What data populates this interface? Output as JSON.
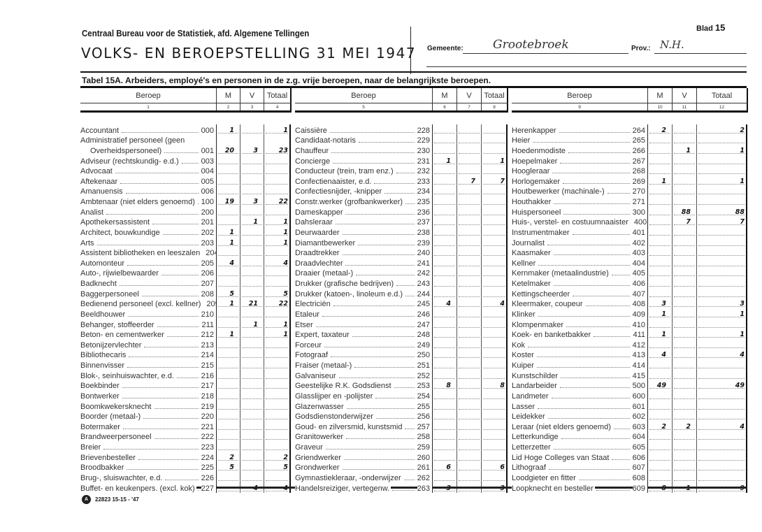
{
  "header": {
    "organization": "Centraal Bureau voor de Statistiek, afd. Algemene Tellingen",
    "title": "VOLKS- EN BEROEPSTELLING 31 MEI 1947",
    "gemeente_label": "Gemeente:",
    "gemeente_value": "Grootebroek",
    "prov_label": "Prov.:",
    "prov_value": "N.H.",
    "blad_label": "Blad",
    "blad_number": "15"
  },
  "table_title": "Tabel 15A.  Arbeiders, employé's en personen in de z.g. vrije beroepen, naar de belangrijkste beroepen.",
  "column_headers": {
    "beroep": "Beroep",
    "m": "M",
    "v": "V",
    "totaal": "Totaal"
  },
  "blocks": [
    {
      "col_numbers": [
        "1",
        "2",
        "3",
        "4"
      ],
      "rows": [
        {
          "label": "Accountant",
          "code": "000",
          "m": "1",
          "v": "",
          "t": "1"
        },
        {
          "label": "Administratief  personeel  (geen",
          "code": "",
          "m": "",
          "v": "",
          "t": "",
          "cont": true
        },
        {
          "label": "Overheidspersoneel)",
          "code": "001",
          "m": "20",
          "v": "3",
          "t": "23",
          "indent": true
        },
        {
          "label": "Adviseur (rechtskundig- e.d.)",
          "code": "003",
          "m": "",
          "v": "",
          "t": ""
        },
        {
          "label": "Advocaat",
          "code": "004",
          "m": "",
          "v": "",
          "t": ""
        },
        {
          "label": "Aftekenaar",
          "code": "005",
          "m": "",
          "v": "",
          "t": ""
        },
        {
          "label": "Amanuensis",
          "code": "006",
          "m": "",
          "v": "",
          "t": ""
        },
        {
          "label": "Ambtenaar (niet elders genoemd)",
          "code": "100",
          "m": "19",
          "v": "3",
          "t": "22"
        },
        {
          "label": "Analist",
          "code": "200",
          "m": "",
          "v": "",
          "t": ""
        },
        {
          "label": "Apothekersassistent",
          "code": "201",
          "m": "",
          "v": "1",
          "t": "1"
        },
        {
          "label": "Architect, bouwkundige",
          "code": "202",
          "m": "1",
          "v": "",
          "t": "1"
        },
        {
          "label": "Arts",
          "code": "203",
          "m": "1",
          "v": "",
          "t": "1"
        },
        {
          "label": "Assistent bibliotheken en leeszalen",
          "code": "204",
          "m": "",
          "v": "",
          "t": ""
        },
        {
          "label": "Automonteur",
          "code": "205",
          "m": "4",
          "v": "",
          "t": "4"
        },
        {
          "label": "Auto-, rijwielbewaarder",
          "code": "206",
          "m": "",
          "v": "",
          "t": ""
        },
        {
          "label": "Badknecht",
          "code": "207",
          "m": "",
          "v": "",
          "t": ""
        },
        {
          "label": "Baggerpersoneel",
          "code": "208",
          "m": "5",
          "v": "",
          "t": "5"
        },
        {
          "label": "Bedienend personeel (excl. kellner)",
          "code": "209",
          "m": "1",
          "v": "21",
          "t": "22"
        },
        {
          "label": "Beeldhouwer",
          "code": "210",
          "m": "",
          "v": "",
          "t": ""
        },
        {
          "label": "Behanger, stoffeerder",
          "code": "211",
          "m": "",
          "v": "1",
          "t": "1"
        },
        {
          "label": "Beton- en cementwerker",
          "code": "212",
          "m": "1",
          "v": "",
          "t": "1"
        },
        {
          "label": "Betonijzervlechter",
          "code": "213",
          "m": "",
          "v": "",
          "t": ""
        },
        {
          "label": "Bibliothecaris",
          "code": "214",
          "m": "",
          "v": "",
          "t": ""
        },
        {
          "label": "Binnenvisser",
          "code": "215",
          "m": "",
          "v": "",
          "t": ""
        },
        {
          "label": "Blok-, seinhuiswachter, e.d.",
          "code": "216",
          "m": "",
          "v": "",
          "t": ""
        },
        {
          "label": "Boekbinder",
          "code": "217",
          "m": "",
          "v": "",
          "t": ""
        },
        {
          "label": "Bontwerker",
          "code": "218",
          "m": "",
          "v": "",
          "t": ""
        },
        {
          "label": "Boomkwekersknecht",
          "code": "219",
          "m": "",
          "v": "",
          "t": ""
        },
        {
          "label": "Boorder (metaal-)",
          "code": "220",
          "m": "",
          "v": "",
          "t": ""
        },
        {
          "label": "Botermaker",
          "code": "221",
          "m": "",
          "v": "",
          "t": ""
        },
        {
          "label": "Brandweerpersoneel",
          "code": "222",
          "m": "",
          "v": "",
          "t": ""
        },
        {
          "label": "Breier",
          "code": "223",
          "m": "",
          "v": "",
          "t": ""
        },
        {
          "label": "Brievenbesteller",
          "code": "224",
          "m": "2",
          "v": "",
          "t": "2"
        },
        {
          "label": "Broodbakker",
          "code": "225",
          "m": "5",
          "v": "",
          "t": "5"
        },
        {
          "label": "Brug-, sluiswachter, e.d.",
          "code": "226",
          "m": "",
          "v": "",
          "t": ""
        },
        {
          "label": "Buffet- en keukenpers. (excl. kok)",
          "code": "227",
          "m": "",
          "v": "4",
          "t": "4"
        }
      ]
    },
    {
      "col_numbers": [
        "5",
        "6",
        "7",
        "8"
      ],
      "rows": [
        {
          "label": "Caissière",
          "code": "228",
          "m": "",
          "v": "",
          "t": ""
        },
        {
          "label": "Candidaat-notaris",
          "code": "229",
          "m": "",
          "v": "",
          "t": ""
        },
        {
          "label": "Chauffeur",
          "code": "230",
          "m": "",
          "v": "",
          "t": ""
        },
        {
          "label": "Concierge",
          "code": "231",
          "m": "1",
          "v": "",
          "t": "1"
        },
        {
          "label": "Conducteur (trein, tram enz.)",
          "code": "232",
          "m": "",
          "v": "",
          "t": ""
        },
        {
          "label": "Confectienaaister, e.d.",
          "code": "233",
          "m": "",
          "v": "7",
          "t": "7"
        },
        {
          "label": "Confectiesnijder, -knipper",
          "code": "234",
          "m": "",
          "v": "",
          "t": ""
        },
        {
          "label": "Constr.werker (grofbankwerker)",
          "code": "235",
          "m": "",
          "v": "",
          "t": ""
        },
        {
          "label": "Dameskapper",
          "code": "236",
          "m": "",
          "v": "",
          "t": ""
        },
        {
          "label": "Dahsleraar",
          "code": "237",
          "m": "",
          "v": "",
          "t": ""
        },
        {
          "label": "Deurwaarder",
          "code": "238",
          "m": "",
          "v": "",
          "t": ""
        },
        {
          "label": "Diamantbewerker",
          "code": "239",
          "m": "",
          "v": "",
          "t": ""
        },
        {
          "label": "Draadtrekker",
          "code": "240",
          "m": "",
          "v": "",
          "t": ""
        },
        {
          "label": "Draadvlechter",
          "code": "241",
          "m": "",
          "v": "",
          "t": ""
        },
        {
          "label": "Draaier (metaal-)",
          "code": "242",
          "m": "",
          "v": "",
          "t": ""
        },
        {
          "label": "Drukker (grafische bedrijven)",
          "code": "243",
          "m": "",
          "v": "",
          "t": ""
        },
        {
          "label": "Drukker (katoen-, linoleum e.d.)",
          "code": "244",
          "m": "",
          "v": "",
          "t": ""
        },
        {
          "label": "Electriciën",
          "code": "245",
          "m": "4",
          "v": "",
          "t": "4"
        },
        {
          "label": "Etaleur",
          "code": "246",
          "m": "",
          "v": "",
          "t": ""
        },
        {
          "label": "Etser",
          "code": "247",
          "m": "",
          "v": "",
          "t": ""
        },
        {
          "label": "Expert, taxateur",
          "code": "248",
          "m": "",
          "v": "",
          "t": ""
        },
        {
          "label": "Forceur",
          "code": "249",
          "m": "",
          "v": "",
          "t": ""
        },
        {
          "label": "Fotograaf",
          "code": "250",
          "m": "",
          "v": "",
          "t": ""
        },
        {
          "label": "Fraiser (metaal-)",
          "code": "251",
          "m": "",
          "v": "",
          "t": ""
        },
        {
          "label": "Galvaniseur",
          "code": "252",
          "m": "",
          "v": "",
          "t": ""
        },
        {
          "label": "Geestelijke R.K. Godsdienst",
          "code": "253",
          "m": "8",
          "v": "",
          "t": "8"
        },
        {
          "label": "Glasslijper en -polijster",
          "code": "254",
          "m": "",
          "v": "",
          "t": ""
        },
        {
          "label": "Glazenwasser",
          "code": "255",
          "m": "",
          "v": "",
          "t": ""
        },
        {
          "label": "Godsdienstonderwijzer",
          "code": "256",
          "m": "",
          "v": "",
          "t": ""
        },
        {
          "label": "Goud- en zilversmid, kunstsmid",
          "code": "257",
          "m": "",
          "v": "",
          "t": ""
        },
        {
          "label": "Granitowerker",
          "code": "258",
          "m": "",
          "v": "",
          "t": ""
        },
        {
          "label": "Graveur",
          "code": "259",
          "m": "",
          "v": "",
          "t": ""
        },
        {
          "label": "Griendwerker",
          "code": "260",
          "m": "",
          "v": "",
          "t": ""
        },
        {
          "label": "Grondwerker",
          "code": "261",
          "m": "6",
          "v": "",
          "t": "6"
        },
        {
          "label": "Gymnastiekleraar, -onderwijzer",
          "code": "262",
          "m": "",
          "v": "",
          "t": ""
        },
        {
          "label": "Handelsreiziger, vertegenw.",
          "code": "263",
          "m": "3",
          "v": "",
          "t": "3"
        }
      ]
    },
    {
      "col_numbers": [
        "9",
        "10",
        "11",
        "12"
      ],
      "rows": [
        {
          "label": "Herenkapper",
          "code": "264",
          "m": "2",
          "v": "",
          "t": "2"
        },
        {
          "label": "Heier",
          "code": "265",
          "m": "",
          "v": "",
          "t": ""
        },
        {
          "label": "Hoedenmodiste",
          "code": "266",
          "m": "",
          "v": "1",
          "t": "1"
        },
        {
          "label": "Hoepelmaker",
          "code": "267",
          "m": "",
          "v": "",
          "t": ""
        },
        {
          "label": "Hoogleraar",
          "code": "268",
          "m": "",
          "v": "",
          "t": ""
        },
        {
          "label": "Horlogemaker",
          "code": "269",
          "m": "1",
          "v": "",
          "t": "1"
        },
        {
          "label": "Houtbewerker (machinale-)",
          "code": "270",
          "m": "",
          "v": "",
          "t": ""
        },
        {
          "label": "Houthakker",
          "code": "271",
          "m": "",
          "v": "",
          "t": ""
        },
        {
          "label": "Huispersoneel",
          "code": "300",
          "m": "",
          "v": "88",
          "t": "88"
        },
        {
          "label": "Huis-, verstel- en costuumnaaister",
          "code": "400",
          "m": "",
          "v": "7",
          "t": "7"
        },
        {
          "label": "Instrumentmaker",
          "code": "401",
          "m": "",
          "v": "",
          "t": ""
        },
        {
          "label": "Journalist",
          "code": "402",
          "m": "",
          "v": "",
          "t": ""
        },
        {
          "label": "Kaasmaker",
          "code": "403",
          "m": "",
          "v": "",
          "t": ""
        },
        {
          "label": "Kellner",
          "code": "404",
          "m": "",
          "v": "",
          "t": ""
        },
        {
          "label": "Kernmaker (metaalindustrie)",
          "code": "405",
          "m": "",
          "v": "",
          "t": ""
        },
        {
          "label": "Ketelmaker",
          "code": "406",
          "m": "",
          "v": "",
          "t": ""
        },
        {
          "label": "Kettingscheerder",
          "code": "407",
          "m": "",
          "v": "",
          "t": ""
        },
        {
          "label": "Kleermaker, coupeur",
          "code": "408",
          "m": "3",
          "v": "",
          "t": "3"
        },
        {
          "label": "Klinker",
          "code": "409",
          "m": "1",
          "v": "",
          "t": "1"
        },
        {
          "label": "Klompenmaker",
          "code": "410",
          "m": "",
          "v": "",
          "t": ""
        },
        {
          "label": "Koek- en banketbakker",
          "code": "411",
          "m": "1",
          "v": "",
          "t": "1"
        },
        {
          "label": "Kok",
          "code": "412",
          "m": "",
          "v": "",
          "t": ""
        },
        {
          "label": "Koster",
          "code": "413",
          "m": "4",
          "v": "",
          "t": "4"
        },
        {
          "label": "Kuiper",
          "code": "414",
          "m": "",
          "v": "",
          "t": ""
        },
        {
          "label": "Kunstschilder",
          "code": "415",
          "m": "",
          "v": "",
          "t": ""
        },
        {
          "label": "Landarbeider",
          "code": "500",
          "m": "49",
          "v": "",
          "t": "49"
        },
        {
          "label": "Landmeter",
          "code": "600",
          "m": "",
          "v": "",
          "t": ""
        },
        {
          "label": "Lasser",
          "code": "601",
          "m": "",
          "v": "",
          "t": ""
        },
        {
          "label": "Leidekker",
          "code": "602",
          "m": "",
          "v": "",
          "t": ""
        },
        {
          "label": "Leraar (niet elders genoemd)",
          "code": "603",
          "m": "2",
          "v": "2",
          "t": "4"
        },
        {
          "label": "Letterkundige",
          "code": "604",
          "m": "",
          "v": "",
          "t": ""
        },
        {
          "label": "Letterzetter",
          "code": "605",
          "m": "",
          "v": "",
          "t": ""
        },
        {
          "label": "Lid Hoge Colleges van Staat",
          "code": "606",
          "m": "",
          "v": "",
          "t": ""
        },
        {
          "label": "Lithograaf",
          "code": "607",
          "m": "",
          "v": "",
          "t": ""
        },
        {
          "label": "Loodgieter en fitter",
          "code": "608",
          "m": "",
          "v": "",
          "t": ""
        },
        {
          "label": "Loopknecht en besteller",
          "code": "609",
          "m": "8",
          "v": "1",
          "t": "9"
        }
      ]
    }
  ],
  "footer": {
    "logo_text": "A",
    "print_code": "22823 15-15 - '47"
  }
}
